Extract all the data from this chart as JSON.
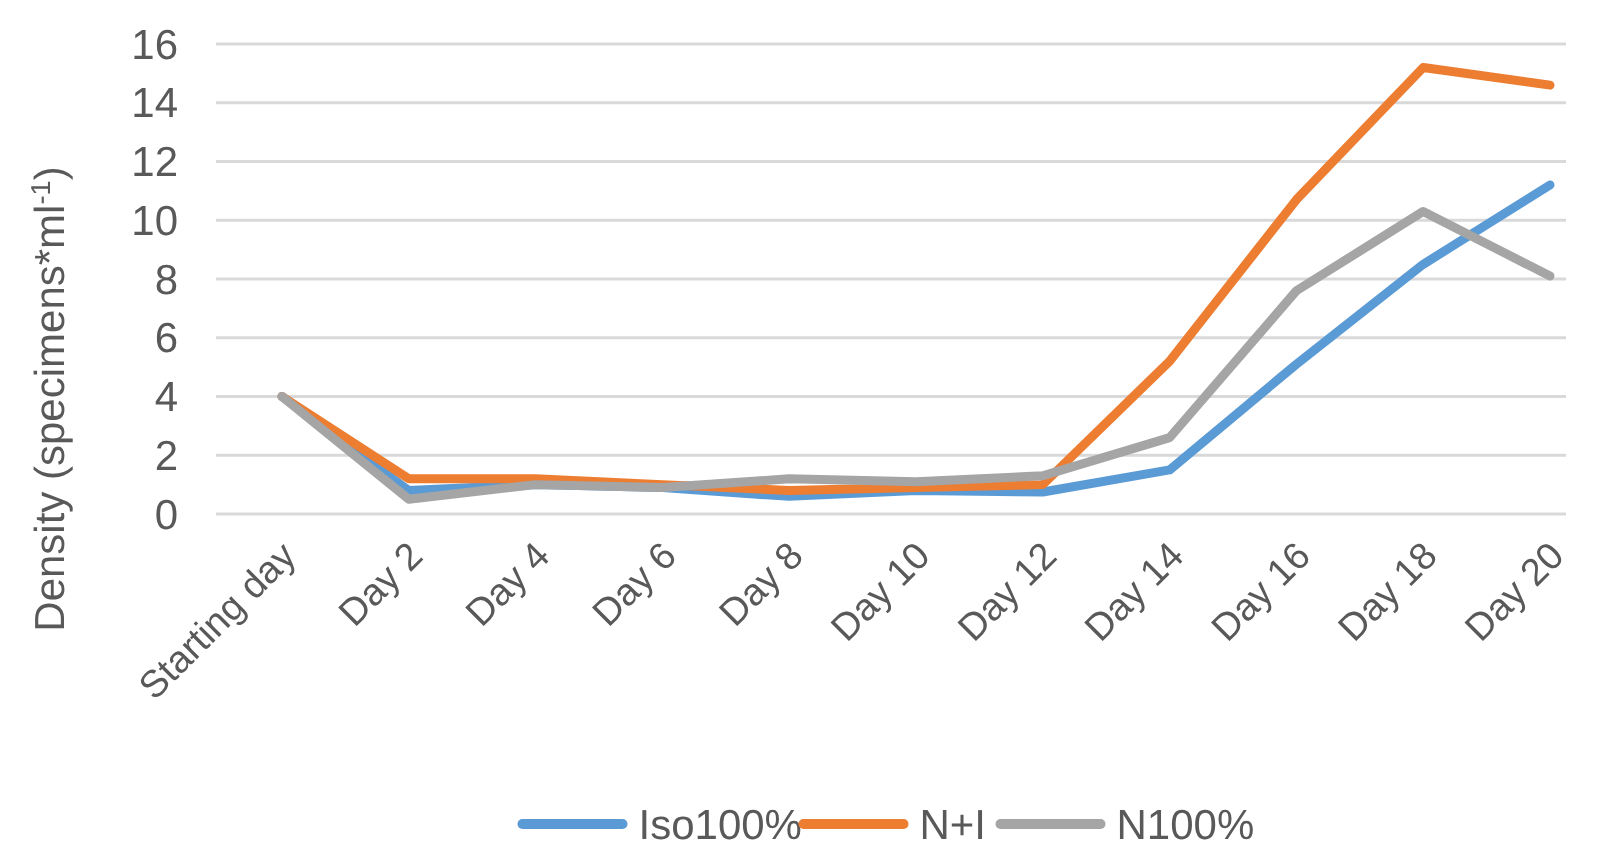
{
  "chart_data": {
    "type": "line",
    "ylabel": "Density (specimens*ml$^{-1}$)",
    "categories": [
      "Starting day",
      "Day 2",
      "Day 4",
      "Day 6",
      "Day 8",
      "Day 10",
      "Day 12",
      "Day 14",
      "Day 16",
      "Day 18",
      "Day 20"
    ],
    "series": [
      {
        "name": "Iso100%",
        "color": "#5b9bd5",
        "values": [
          4,
          0.8,
          1.0,
          0.9,
          0.6,
          0.8,
          0.75,
          1.5,
          5.1,
          8.5,
          11.2
        ]
      },
      {
        "name": "N+I",
        "color": "#ed7d31",
        "values": [
          4,
          1.2,
          1.2,
          1.0,
          0.8,
          0.9,
          1.0,
          5.2,
          10.7,
          15.2,
          14.6
        ]
      },
      {
        "name": "N100%",
        "color": "#a5a5a5",
        "values": [
          4,
          0.5,
          1.0,
          0.9,
          1.2,
          1.1,
          1.3,
          2.6,
          7.6,
          10.3,
          8.1
        ]
      }
    ],
    "ylim": [
      0,
      16
    ],
    "yticks": [
      0,
      2,
      4,
      6,
      8,
      10,
      12,
      14,
      16
    ],
    "grid": "y",
    "legend": "bottom",
    "marker": "none",
    "line_style": "solid"
  }
}
